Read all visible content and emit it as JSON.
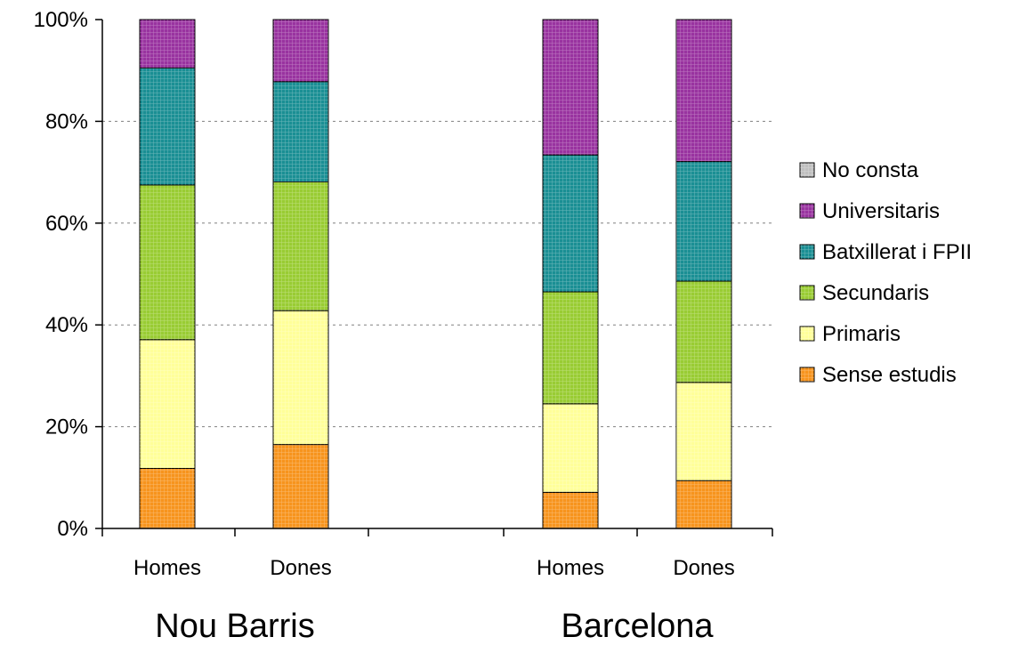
{
  "chart_data": {
    "type": "bar",
    "stacked": true,
    "normalized_percent": true,
    "groups": [
      {
        "label": "Nou Barris",
        "categories": [
          "Homes",
          "Dones"
        ]
      },
      {
        "label": "Barcelona",
        "categories": [
          "Homes",
          "Dones"
        ]
      }
    ],
    "categories": [
      "Homes",
      "Dones",
      "Homes",
      "Dones"
    ],
    "series": [
      {
        "name": "Sense estudis",
        "color": "#f7941d",
        "values": [
          11.8,
          16.5,
          7.1,
          9.4
        ]
      },
      {
        "name": "Primaris",
        "color": "#ffff99",
        "values": [
          25.3,
          26.3,
          17.4,
          19.3
        ]
      },
      {
        "name": "Secundaris",
        "color": "#99cc33",
        "values": [
          30.4,
          25.3,
          22.0,
          19.9
        ]
      },
      {
        "name": "Batxillerat i FPII",
        "color": "#1a8f94",
        "values": [
          23.0,
          19.7,
          26.9,
          23.5
        ]
      },
      {
        "name": "Universitaris",
        "color": "#9933a0",
        "values": [
          9.5,
          12.2,
          26.6,
          27.9
        ]
      },
      {
        "name": "No consta",
        "color": "#c0c0c0",
        "values": [
          0,
          0,
          0,
          0
        ]
      }
    ],
    "y_ticks": [
      "0%",
      "20%",
      "40%",
      "60%",
      "80%",
      "100%"
    ],
    "ylim": [
      0,
      100
    ],
    "grid": true,
    "legend_position": "right",
    "legend_order": [
      "No consta",
      "Universitaris",
      "Batxillerat i FPII",
      "Secundaris",
      "Primaris",
      "Sense estudis"
    ]
  }
}
